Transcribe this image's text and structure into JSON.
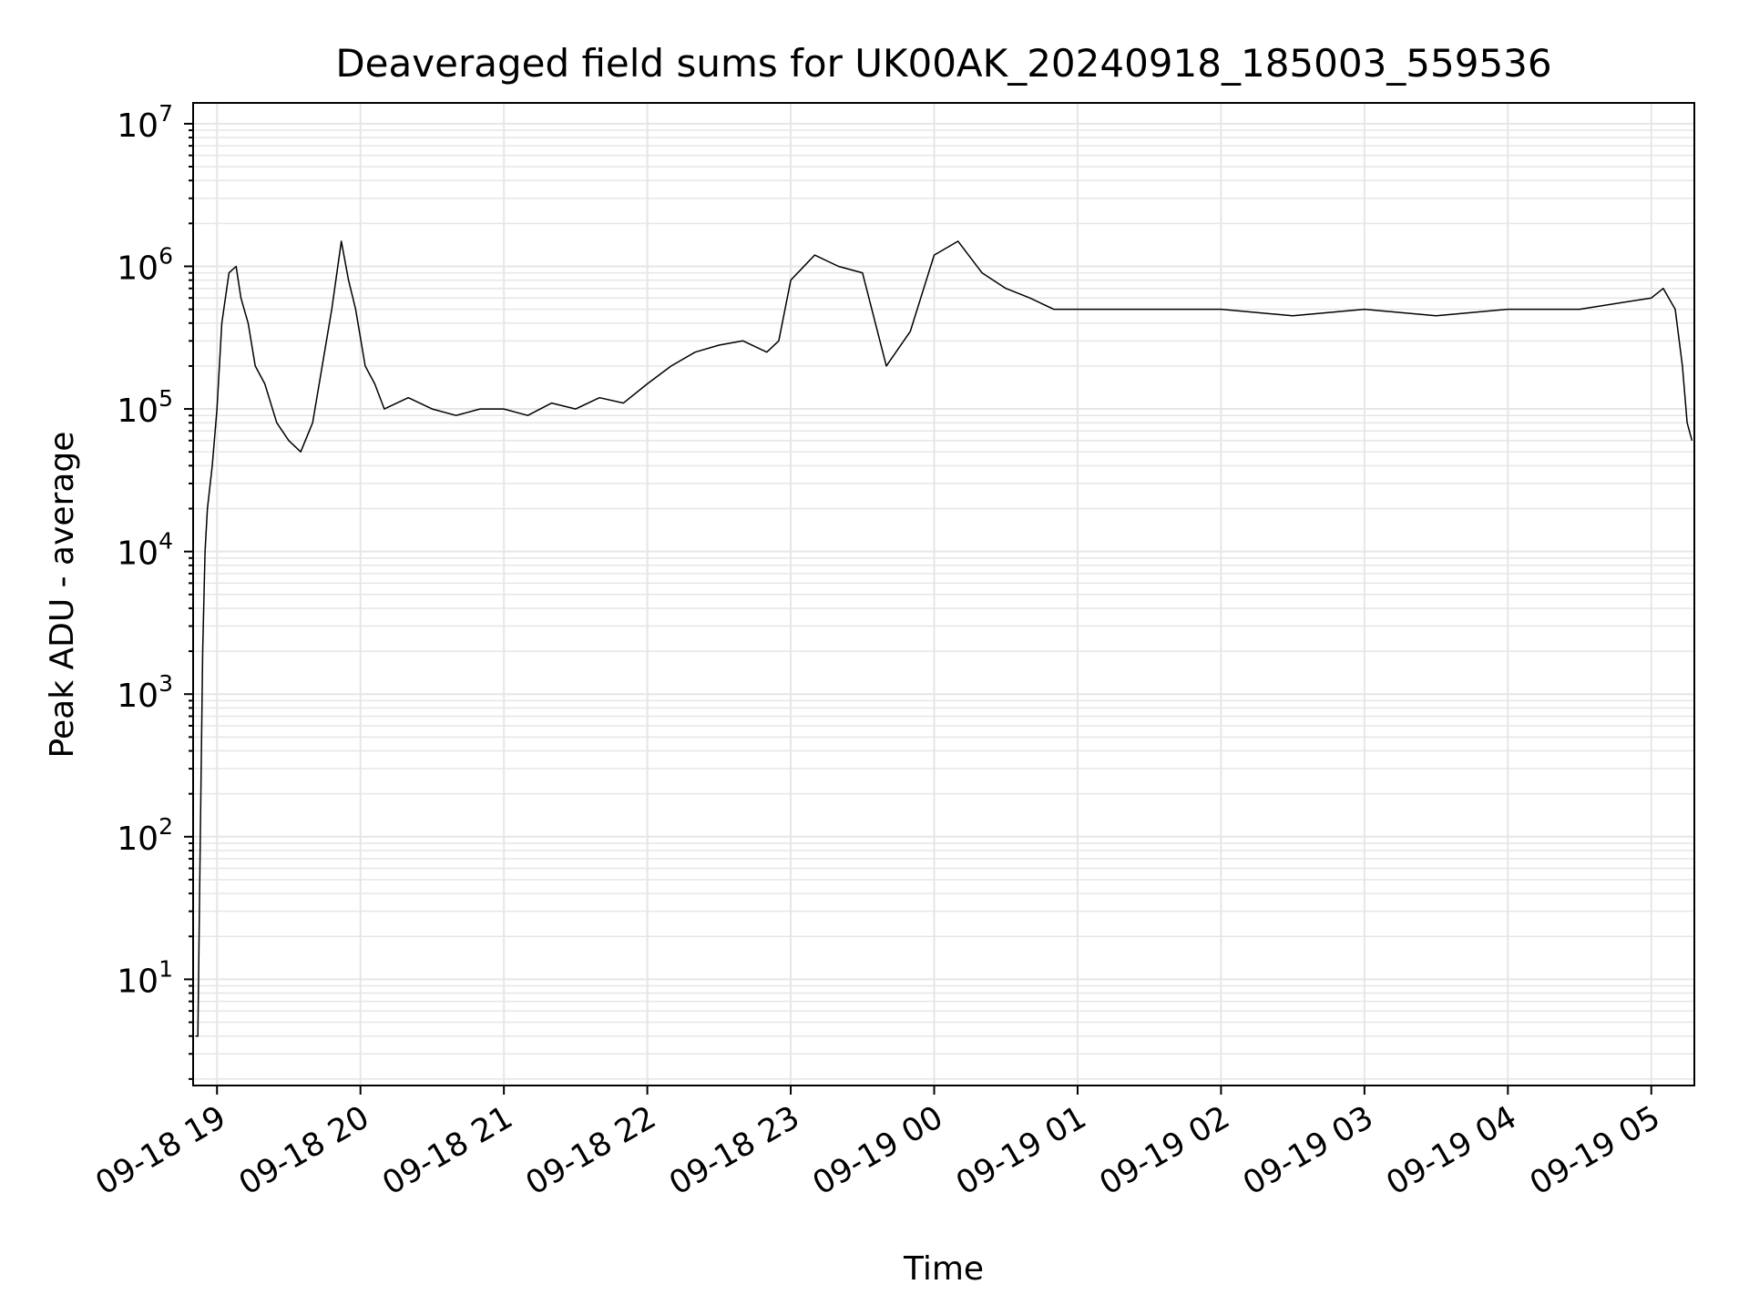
{
  "chart_data": {
    "type": "line",
    "title": "Deaveraged field sums for UK00AK_20240918_185003_559536",
    "xlabel": "Time",
    "ylabel": "Peak ADU - average",
    "yscale": "log",
    "ylim": [
      1.8,
      14000000
    ],
    "xlim": [
      "2024-09-18 18:50",
      "2024-09-19 05:18"
    ],
    "grid": true,
    "line_color": "#000000",
    "grid_color": "#e6e6e6",
    "x_ticks": [
      {
        "t": "2024-09-18 19:00",
        "label": "09-18 19"
      },
      {
        "t": "2024-09-18 20:00",
        "label": "09-18 20"
      },
      {
        "t": "2024-09-18 21:00",
        "label": "09-18 21"
      },
      {
        "t": "2024-09-18 22:00",
        "label": "09-18 22"
      },
      {
        "t": "2024-09-18 23:00",
        "label": "09-18 23"
      },
      {
        "t": "2024-09-19 00:00",
        "label": "09-19 00"
      },
      {
        "t": "2024-09-19 01:00",
        "label": "09-19 01"
      },
      {
        "t": "2024-09-19 02:00",
        "label": "09-19 02"
      },
      {
        "t": "2024-09-19 03:00",
        "label": "09-19 03"
      },
      {
        "t": "2024-09-19 04:00",
        "label": "09-19 04"
      },
      {
        "t": "2024-09-19 05:00",
        "label": "09-19 05"
      }
    ],
    "y_ticks": [
      {
        "value": 10,
        "base": "10",
        "exp": "1"
      },
      {
        "value": 100,
        "base": "10",
        "exp": "2"
      },
      {
        "value": 1000,
        "base": "10",
        "exp": "3"
      },
      {
        "value": 10000,
        "base": "10",
        "exp": "4"
      },
      {
        "value": 100000,
        "base": "10",
        "exp": "5"
      },
      {
        "value": 1000000,
        "base": "10",
        "exp": "6"
      },
      {
        "value": 10000000,
        "base": "10",
        "exp": "7"
      }
    ],
    "series": [
      {
        "points": [
          [
            "2024-09-18 18:51",
            4
          ],
          [
            "2024-09-18 18:52",
            4
          ],
          [
            "2024-09-18 18:53",
            100
          ],
          [
            "2024-09-18 18:54",
            2000
          ],
          [
            "2024-09-18 18:55",
            10000
          ],
          [
            "2024-09-18 18:56",
            20000
          ],
          [
            "2024-09-18 18:58",
            40000
          ],
          [
            "2024-09-18 19:00",
            100000
          ],
          [
            "2024-09-18 19:02",
            400000
          ],
          [
            "2024-09-18 19:05",
            900000
          ],
          [
            "2024-09-18 19:08",
            1000000
          ],
          [
            "2024-09-18 19:10",
            600000
          ],
          [
            "2024-09-18 19:13",
            400000
          ],
          [
            "2024-09-18 19:16",
            200000
          ],
          [
            "2024-09-18 19:20",
            150000
          ],
          [
            "2024-09-18 19:25",
            80000
          ],
          [
            "2024-09-18 19:30",
            60000
          ],
          [
            "2024-09-18 19:35",
            50000
          ],
          [
            "2024-09-18 19:40",
            80000
          ],
          [
            "2024-09-18 19:44",
            200000
          ],
          [
            "2024-09-18 19:48",
            500000
          ],
          [
            "2024-09-18 19:52",
            1500000
          ],
          [
            "2024-09-18 19:55",
            800000
          ],
          [
            "2024-09-18 19:58",
            500000
          ],
          [
            "2024-09-18 20:02",
            200000
          ],
          [
            "2024-09-18 20:06",
            150000
          ],
          [
            "2024-09-18 20:10",
            100000
          ],
          [
            "2024-09-18 20:20",
            120000
          ],
          [
            "2024-09-18 20:30",
            100000
          ],
          [
            "2024-09-18 20:40",
            90000
          ],
          [
            "2024-09-18 20:50",
            100000
          ],
          [
            "2024-09-18 21:00",
            100000
          ],
          [
            "2024-09-18 21:10",
            90000
          ],
          [
            "2024-09-18 21:20",
            110000
          ],
          [
            "2024-09-18 21:30",
            100000
          ],
          [
            "2024-09-18 21:40",
            120000
          ],
          [
            "2024-09-18 21:50",
            110000
          ],
          [
            "2024-09-18 22:00",
            150000
          ],
          [
            "2024-09-18 22:10",
            200000
          ],
          [
            "2024-09-18 22:20",
            250000
          ],
          [
            "2024-09-18 22:30",
            280000
          ],
          [
            "2024-09-18 22:40",
            300000
          ],
          [
            "2024-09-18 22:50",
            250000
          ],
          [
            "2024-09-18 22:55",
            300000
          ],
          [
            "2024-09-18 23:00",
            800000
          ],
          [
            "2024-09-18 23:10",
            1200000
          ],
          [
            "2024-09-18 23:20",
            1000000
          ],
          [
            "2024-09-18 23:30",
            900000
          ],
          [
            "2024-09-18 23:40",
            200000
          ],
          [
            "2024-09-18 23:50",
            350000
          ],
          [
            "2024-09-19 00:00",
            1200000
          ],
          [
            "2024-09-19 00:10",
            1500000
          ],
          [
            "2024-09-19 00:20",
            900000
          ],
          [
            "2024-09-19 00:30",
            700000
          ],
          [
            "2024-09-19 00:40",
            600000
          ],
          [
            "2024-09-19 00:50",
            500000
          ],
          [
            "2024-09-19 01:00",
            500000
          ],
          [
            "2024-09-19 01:30",
            500000
          ],
          [
            "2024-09-19 02:00",
            500000
          ],
          [
            "2024-09-19 02:30",
            450000
          ],
          [
            "2024-09-19 03:00",
            500000
          ],
          [
            "2024-09-19 03:30",
            450000
          ],
          [
            "2024-09-19 04:00",
            500000
          ],
          [
            "2024-09-19 04:30",
            500000
          ],
          [
            "2024-09-19 05:00",
            600000
          ],
          [
            "2024-09-19 05:05",
            700000
          ],
          [
            "2024-09-19 05:10",
            500000
          ],
          [
            "2024-09-19 05:13",
            200000
          ],
          [
            "2024-09-19 05:15",
            80000
          ],
          [
            "2024-09-19 05:17",
            60000
          ]
        ]
      }
    ]
  }
}
